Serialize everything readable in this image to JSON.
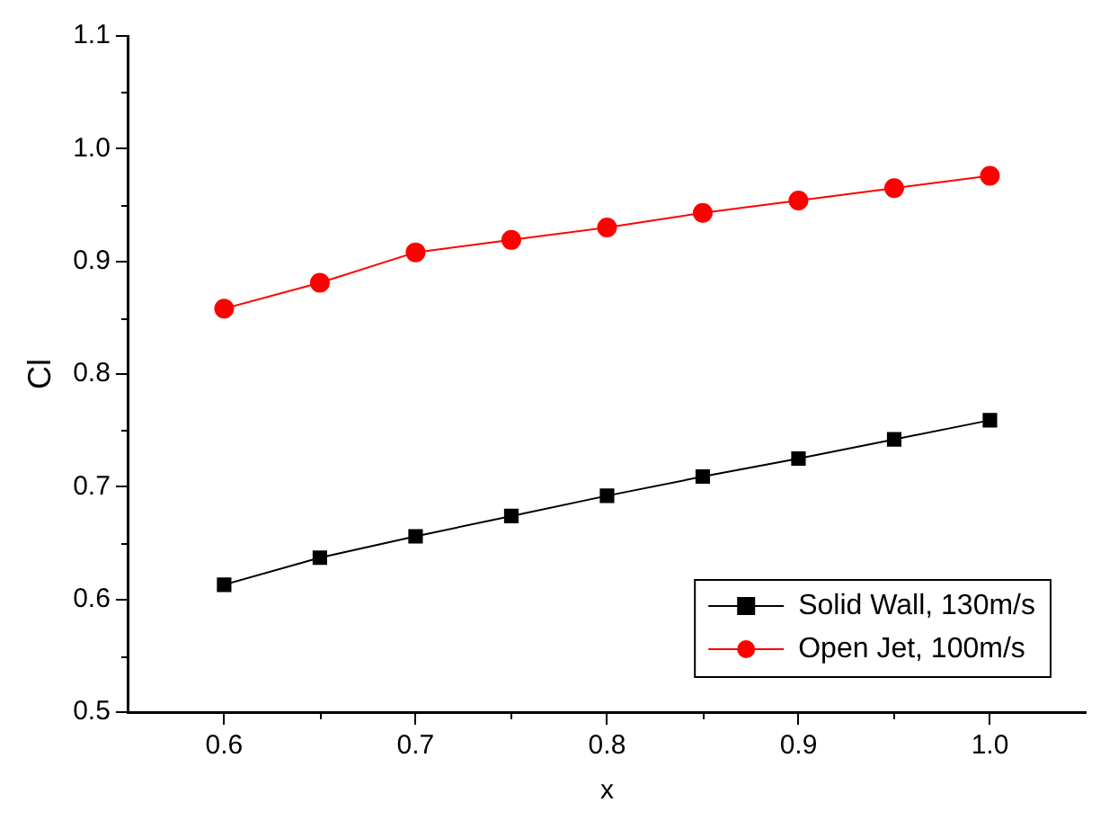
{
  "chart_data": {
    "type": "line",
    "xlabel": "x",
    "ylabel": "Cl",
    "x": [
      0.6,
      0.65,
      0.7,
      0.75,
      0.8,
      0.85,
      0.9,
      0.95,
      1.0
    ],
    "series": [
      {
        "name": "Solid Wall, 130m/s",
        "color": "#000000",
        "marker": "square",
        "values": [
          0.613,
          0.637,
          0.656,
          0.674,
          0.692,
          0.709,
          0.725,
          0.742,
          0.759
        ]
      },
      {
        "name": "Open Jet, 100m/s",
        "color": "#ff0000",
        "marker": "circle",
        "values": [
          0.858,
          0.881,
          0.908,
          0.919,
          0.93,
          0.943,
          0.954,
          0.965,
          0.976
        ]
      }
    ],
    "xlim": [
      0.55,
      1.05
    ],
    "xticks": [
      0.6,
      0.7,
      0.8,
      0.9,
      {
        "value": 1,
        "label": "1.0"
      }
    ],
    "ylim": [
      0.5,
      1.1
    ],
    "yticks": [
      0.5,
      0.6,
      0.7,
      0.8,
      0.9,
      {
        "value": 1,
        "label": "1.0"
      },
      1.1
    ],
    "grid": false,
    "legend": "bottom right"
  }
}
